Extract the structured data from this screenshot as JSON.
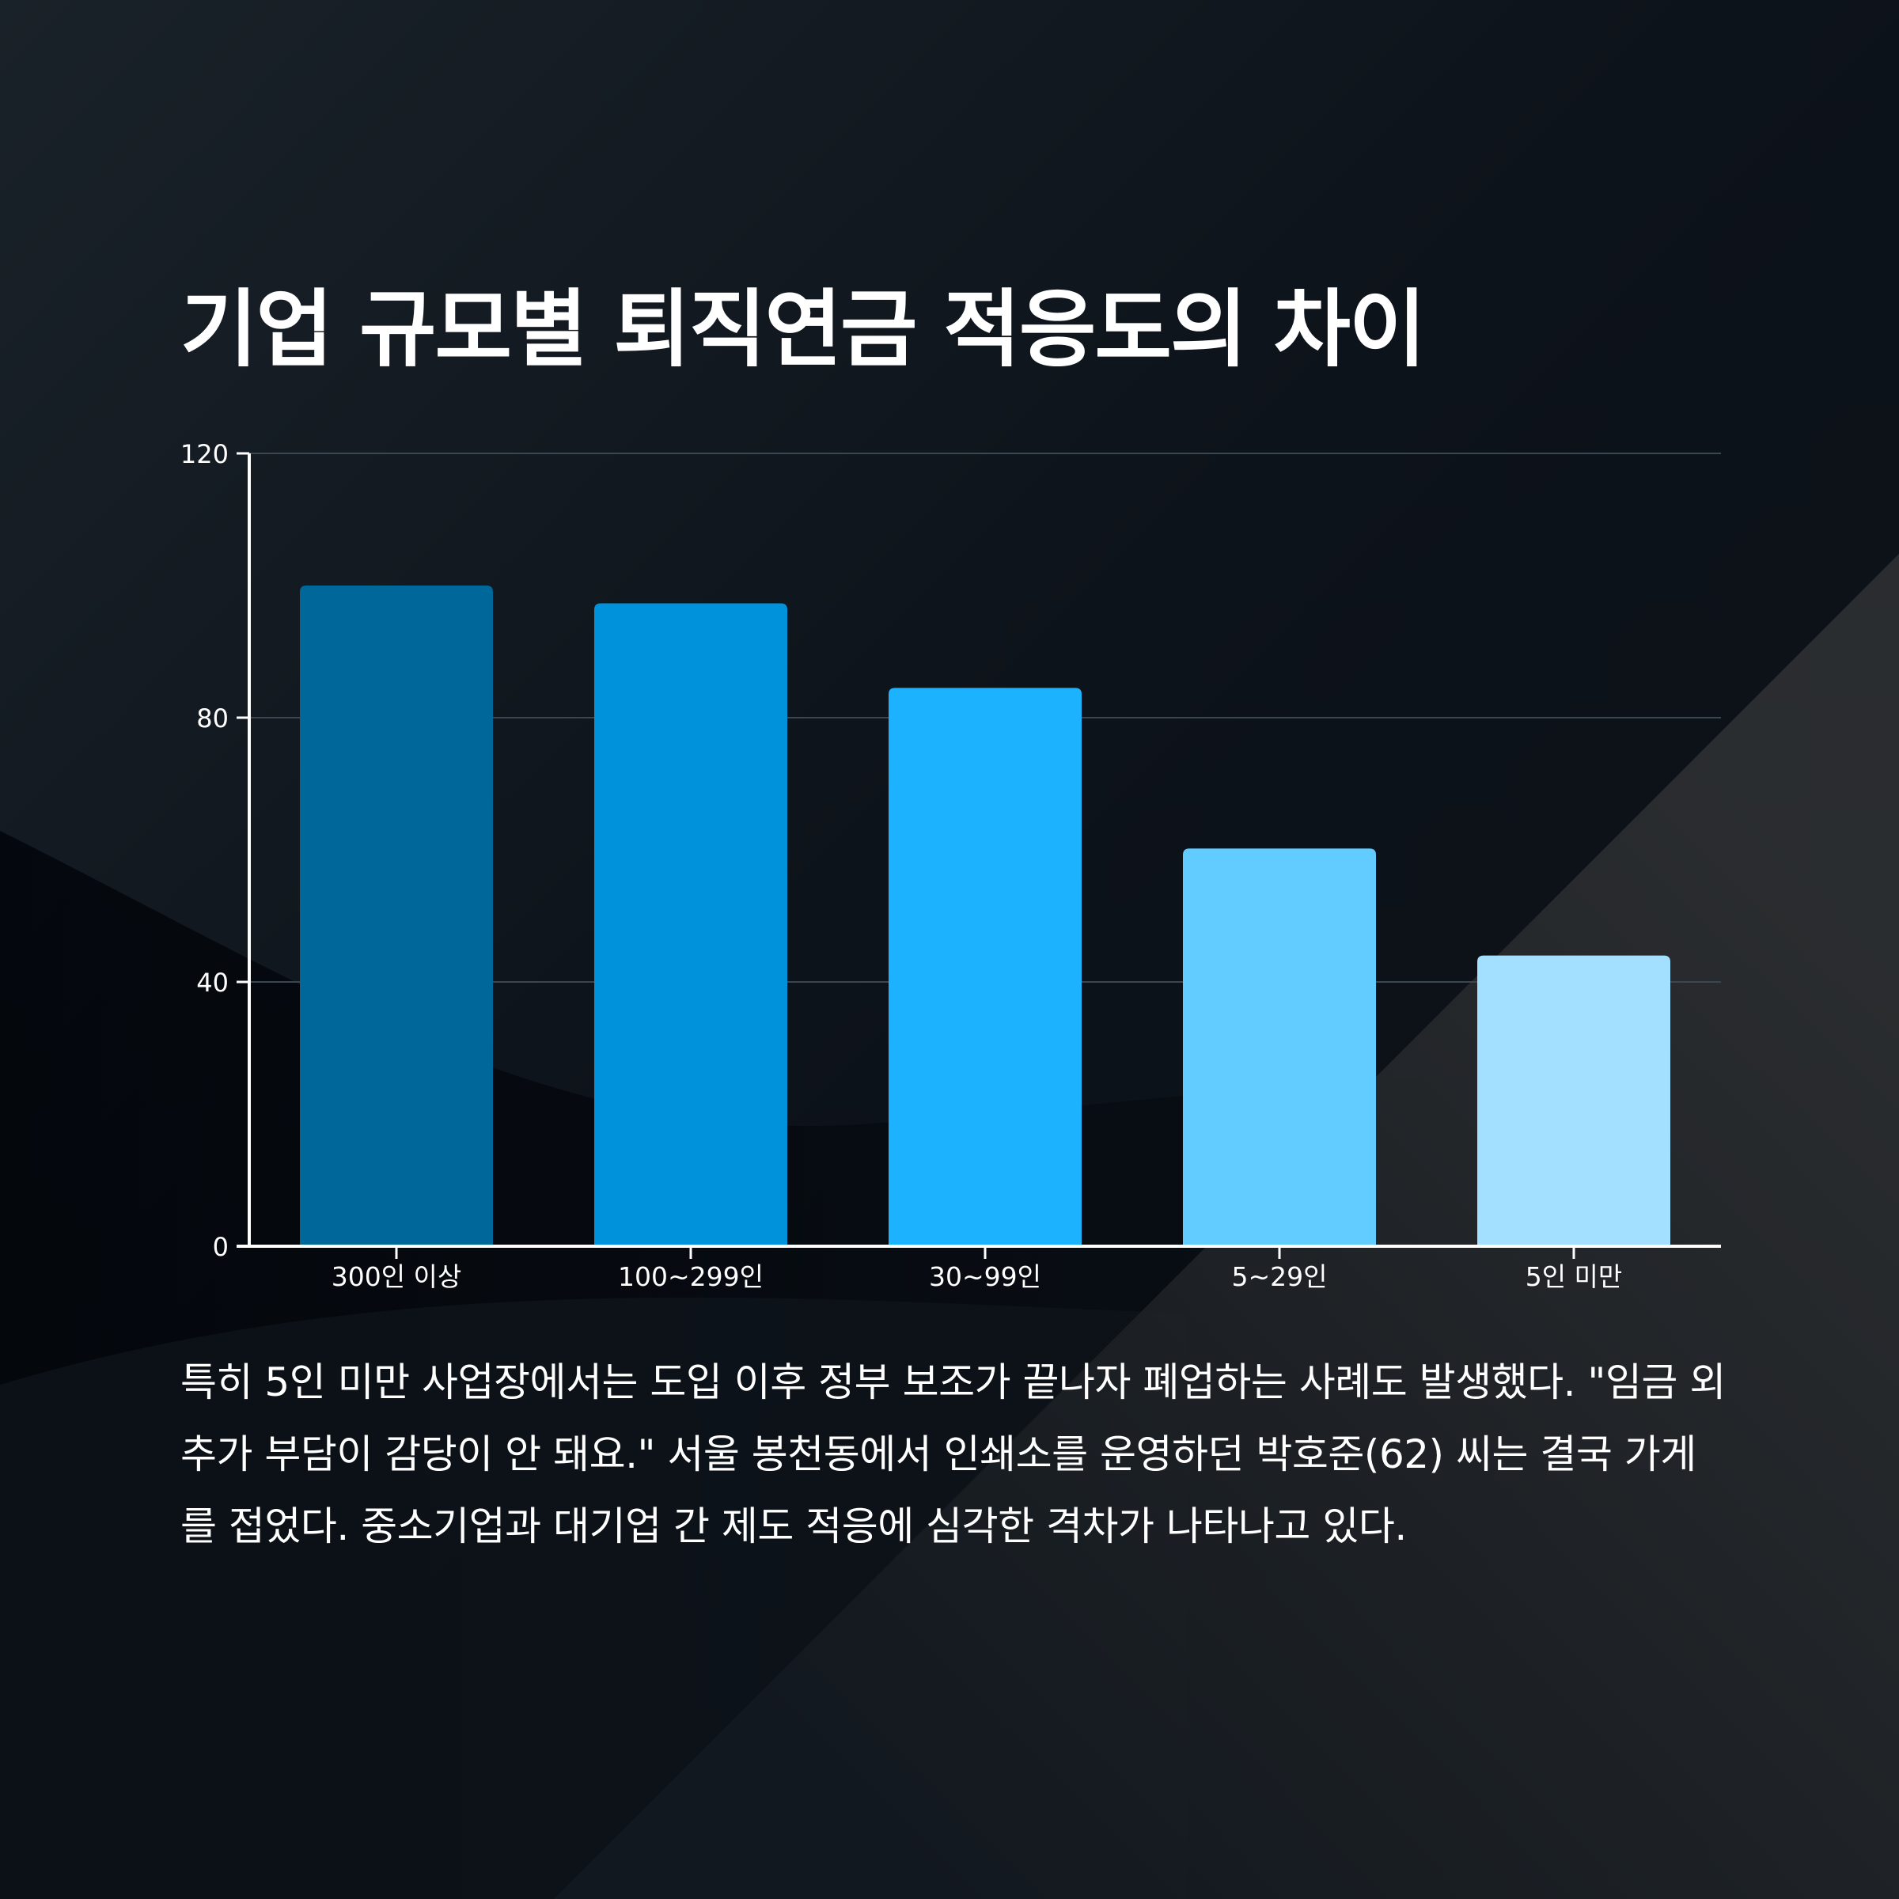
{
  "title": "기업 규모별 퇴직연금 적응도의 차이",
  "caption": "특히 5인 미만 사업장에서는 도입 이후 정부 보조가 끝나자 폐업하는 사례도 발생했다. \"임금 외 추가 부담이 감당이 안 돼요.\" 서울 봉천동에서 인쇄소를 운영하던 박호준(62) 씨는 결국 가게를 접었다. 중소기업과 대기업 간 제도 적응에 심각한 격차가 나타나고 있다.",
  "colors": {
    "background": "#0c1219",
    "bars": [
      "#00679a",
      "#0192dc",
      "#1cb2fe",
      "#62cbff",
      "#a3e0ff"
    ],
    "grid": "#3a4650",
    "axis": "#ffffff"
  },
  "chart_data": {
    "type": "bar",
    "categories": [
      "300인 이상",
      "100~299인",
      "30~99인",
      "5~29인",
      "5인 미만"
    ],
    "values": [
      100,
      97.3,
      84.5,
      60.2,
      44.0
    ],
    "ylim": [
      0,
      120
    ],
    "yticks": [
      "0",
      "40",
      "80",
      "120"
    ],
    "grid": true
  }
}
